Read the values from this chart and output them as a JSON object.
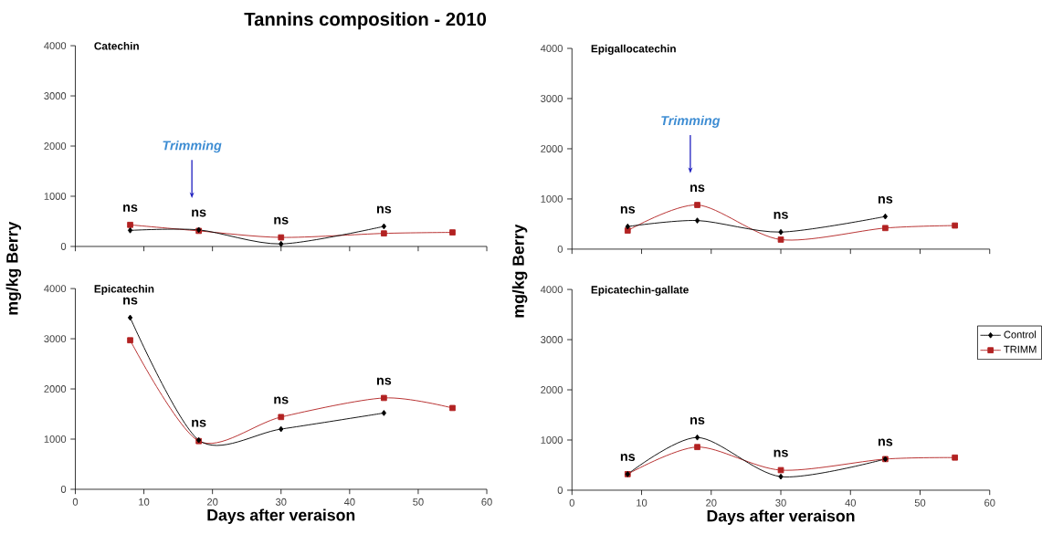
{
  "chart_data": [
    {
      "type": "line",
      "title": "Tannins composition - 2010",
      "subtitle": "Catechin",
      "ylabel": "mg/kg Berry",
      "xlim": [
        0,
        60
      ],
      "xticks": [
        0,
        10,
        20,
        30,
        40,
        50,
        60
      ],
      "ylim": [
        0,
        4000
      ],
      "yticks": [
        0,
        1000,
        2000,
        3000,
        4000
      ],
      "tick_labels": "y",
      "grid": false,
      "legend": false,
      "series": [
        {
          "color": "#000000",
          "marker": "diamond",
          "x": [
            8,
            18,
            30,
            45
          ],
          "values": [
            320,
            330,
            50,
            400
          ]
        },
        {
          "color": "#b22222",
          "marker": "square",
          "x": [
            8,
            18,
            30,
            45,
            55
          ],
          "values": [
            430,
            310,
            180,
            260,
            280
          ]
        }
      ],
      "annotations": [
        "ns",
        "ns",
        "ns",
        "ns"
      ],
      "ref_lines": [
        {
          "axis": "x",
          "value": 17,
          "label": "Trimming",
          "color": "#2020c0"
        }
      ]
    },
    {
      "type": "line",
      "subtitle": "Epigallocatechin",
      "ylabel": "mg/kg Berry",
      "xlim": [
        0,
        60
      ],
      "xticks": [
        0,
        10,
        20,
        30,
        40,
        50,
        60
      ],
      "ylim": [
        0,
        4000
      ],
      "yticks": [
        0,
        1000,
        2000,
        3000,
        4000
      ],
      "tick_labels": "y",
      "grid": false,
      "legend": false,
      "series": [
        {
          "color": "#000000",
          "marker": "diamond",
          "x": [
            8,
            18,
            30,
            45
          ],
          "values": [
            450,
            570,
            340,
            650
          ]
        },
        {
          "color": "#b22222",
          "marker": "square",
          "x": [
            8,
            18,
            30,
            45,
            55
          ],
          "values": [
            370,
            880,
            190,
            420,
            470
          ]
        }
      ],
      "annotations": [
        "ns",
        "ns",
        "ns",
        "ns"
      ],
      "ref_lines": [
        {
          "axis": "x",
          "value": 17,
          "label": "Trimming",
          "color": "#2020c0"
        }
      ]
    },
    {
      "type": "line",
      "subtitle": "Epicatechin",
      "xlabel": "Days after veraison",
      "xlim": [
        0,
        60
      ],
      "xticks": [
        0,
        10,
        20,
        30,
        40,
        50,
        60
      ],
      "ylim": [
        0,
        4000
      ],
      "yticks": [
        0,
        1000,
        2000,
        3000,
        4000
      ],
      "grid": false,
      "legend": false,
      "series": [
        {
          "color": "#000000",
          "marker": "diamond",
          "x": [
            8,
            18,
            30,
            45
          ],
          "values": [
            3420,
            980,
            1200,
            1520
          ]
        },
        {
          "color": "#b22222",
          "marker": "square",
          "x": [
            8,
            18,
            30,
            45,
            55
          ],
          "values": [
            2970,
            960,
            1440,
            1820,
            1620
          ]
        }
      ],
      "annotations": [
        "ns",
        "ns",
        "ns",
        "ns"
      ]
    },
    {
      "type": "line",
      "subtitle": "Epicatechin-gallate",
      "xlabel": "Days after veraison",
      "xlim": [
        0,
        60
      ],
      "xticks": [
        0,
        10,
        20,
        30,
        40,
        50,
        60
      ],
      "ylim": [
        0,
        4000
      ],
      "yticks": [
        0,
        1000,
        2000,
        3000,
        4000
      ],
      "grid": false,
      "legend": "top right",
      "series": [
        {
          "name": "Control",
          "color": "#000000",
          "marker": "diamond",
          "x": [
            8,
            18,
            30,
            45
          ],
          "values": [
            320,
            1050,
            270,
            620
          ]
        },
        {
          "name": "TRIMM",
          "color": "#b22222",
          "marker": "square",
          "x": [
            8,
            18,
            30,
            45,
            55
          ],
          "values": [
            320,
            860,
            400,
            620,
            650
          ]
        }
      ],
      "annotations": [
        "ns",
        "ns",
        "ns",
        "ns"
      ]
    }
  ]
}
